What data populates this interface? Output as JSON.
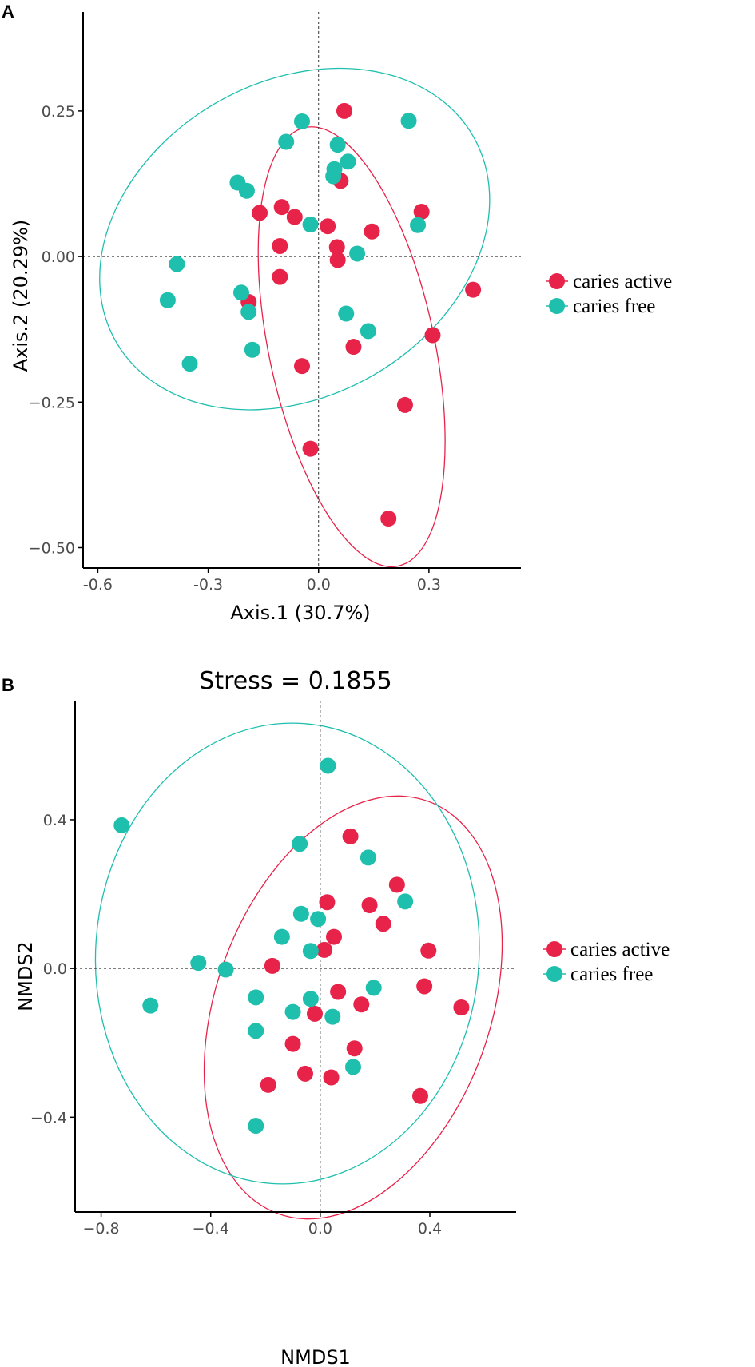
{
  "colors": {
    "caries_active": "#E8234A",
    "caries_free": "#1FBFAE"
  },
  "chart_data": [
    {
      "panel": "A",
      "type": "scatter",
      "title": "",
      "xlabel": "Axis.1 (30.7%)",
      "ylabel": "Axis.2 (20.29%)",
      "xlim": [
        -0.64,
        0.55
      ],
      "ylim": [
        -0.535,
        0.42
      ],
      "xticks": [
        -0.6,
        -0.3,
        0.0,
        0.3
      ],
      "xtick_labels": [
        "-0.6",
        "-0.3",
        "0.0",
        "0.3"
      ],
      "yticks": [
        0.25,
        0.0,
        -0.25,
        -0.5
      ],
      "ytick_labels": [
        "0.25",
        "0.00",
        "−0.25",
        "−0.50"
      ],
      "legend": [
        "caries active",
        "caries free"
      ],
      "series": [
        {
          "name": "caries active",
          "color_key": "caries_active",
          "points": [
            [
              0.07,
              0.25
            ],
            [
              0.06,
              0.13
            ],
            [
              -0.1,
              0.085
            ],
            [
              -0.16,
              0.075
            ],
            [
              -0.065,
              0.068
            ],
            [
              0.28,
              0.077
            ],
            [
              0.025,
              0.052
            ],
            [
              0.145,
              0.043
            ],
            [
              -0.105,
              0.018
            ],
            [
              0.05,
              0.016
            ],
            [
              0.052,
              -0.006
            ],
            [
              -0.105,
              -0.035
            ],
            [
              -0.19,
              -0.078
            ],
            [
              0.42,
              -0.057
            ],
            [
              0.31,
              -0.135
            ],
            [
              0.095,
              -0.155
            ],
            [
              -0.045,
              -0.188
            ],
            [
              0.235,
              -0.255
            ],
            [
              -0.022,
              -0.33
            ],
            [
              0.19,
              -0.45
            ]
          ]
        },
        {
          "name": "caries free",
          "color_key": "caries_free",
          "points": [
            [
              0.245,
              0.233
            ],
            [
              -0.045,
              0.232
            ],
            [
              -0.088,
              0.197
            ],
            [
              0.052,
              0.192
            ],
            [
              0.08,
              0.163
            ],
            [
              0.043,
              0.15
            ],
            [
              0.04,
              0.138
            ],
            [
              -0.22,
              0.127
            ],
            [
              -0.195,
              0.113
            ],
            [
              0.27,
              0.054
            ],
            [
              -0.022,
              0.055
            ],
            [
              0.105,
              0.005
            ],
            [
              -0.385,
              -0.013
            ],
            [
              -0.41,
              -0.075
            ],
            [
              -0.21,
              -0.062
            ],
            [
              -0.19,
              -0.095
            ],
            [
              0.075,
              -0.098
            ],
            [
              0.135,
              -0.128
            ],
            [
              -0.18,
              -0.16
            ],
            [
              -0.35,
              -0.184
            ]
          ]
        }
      ],
      "ellipses": [
        {
          "series": "caries active",
          "cx": 0.09,
          "cy": -0.155,
          "rx": 0.225,
          "ry": 0.385,
          "angle": -12
        },
        {
          "series": "caries free",
          "cx": -0.065,
          "cy": 0.03,
          "rx": 0.56,
          "ry": 0.27,
          "angle": -30
        }
      ]
    },
    {
      "panel": "B",
      "type": "scatter",
      "title": "Stress = 0.1855",
      "xlabel": "NMDS1",
      "ylabel": "NMDS2",
      "xlim": [
        -0.895,
        0.715
      ],
      "ylim": [
        -0.655,
        0.72
      ],
      "xticks": [
        -0.8,
        -0.4,
        0.0,
        0.4
      ],
      "xtick_labels": [
        "−0.8",
        "−0.4",
        "0.0",
        "0.4"
      ],
      "yticks": [
        0.4,
        0.0,
        -0.4
      ],
      "ytick_labels": [
        "0.4",
        "0.0",
        "−0.4"
      ],
      "legend": [
        "caries active",
        "caries free"
      ],
      "series": [
        {
          "name": "caries active",
          "color_key": "caries_active",
          "points": [
            [
              0.11,
              0.355
            ],
            [
              0.28,
              0.225
            ],
            [
              0.18,
              0.17
            ],
            [
              0.025,
              0.178
            ],
            [
              0.23,
              0.12
            ],
            [
              0.05,
              0.085
            ],
            [
              0.015,
              0.05
            ],
            [
              0.395,
              0.048
            ],
            [
              -0.175,
              0.007
            ],
            [
              0.065,
              -0.063
            ],
            [
              0.38,
              -0.048
            ],
            [
              0.515,
              -0.105
            ],
            [
              0.15,
              -0.097
            ],
            [
              -0.02,
              -0.122
            ],
            [
              -0.1,
              -0.203
            ],
            [
              0.125,
              -0.215
            ],
            [
              -0.055,
              -0.283
            ],
            [
              0.04,
              -0.293
            ],
            [
              -0.19,
              -0.313
            ],
            [
              0.365,
              -0.343
            ]
          ]
        },
        {
          "name": "caries free",
          "color_key": "caries_free",
          "points": [
            [
              0.028,
              0.545
            ],
            [
              -0.725,
              0.385
            ],
            [
              -0.075,
              0.335
            ],
            [
              0.175,
              0.298
            ],
            [
              0.31,
              0.18
            ],
            [
              -0.07,
              0.147
            ],
            [
              -0.008,
              0.133
            ],
            [
              -0.14,
              0.085
            ],
            [
              -0.035,
              0.047
            ],
            [
              -0.445,
              0.015
            ],
            [
              -0.345,
              -0.003
            ],
            [
              0.195,
              -0.052
            ],
            [
              -0.235,
              -0.078
            ],
            [
              -0.035,
              -0.082
            ],
            [
              -0.1,
              -0.117
            ],
            [
              0.045,
              -0.13
            ],
            [
              -0.235,
              -0.168
            ],
            [
              0.12,
              -0.265
            ],
            [
              -0.235,
              -0.423
            ],
            [
              -0.62,
              -0.1
            ]
          ]
        }
      ],
      "ellipses": [
        {
          "series": "caries active",
          "cx": 0.12,
          "cy": -0.105,
          "rx": 0.5,
          "ry": 0.59,
          "angle": 20
        },
        {
          "series": "caries free",
          "cx": -0.12,
          "cy": 0.04,
          "rx": 0.7,
          "ry": 0.62,
          "angle": 4
        }
      ]
    }
  ]
}
